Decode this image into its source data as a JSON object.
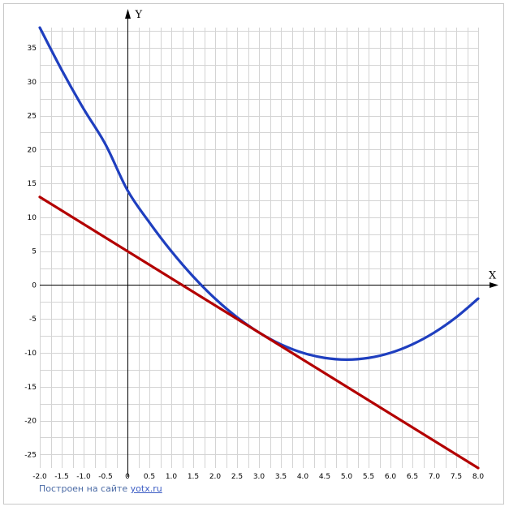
{
  "chart_data": {
    "type": "line",
    "xlabel": "X",
    "ylabel": "Y",
    "xlim": [
      -2.0,
      8.0
    ],
    "ylim": [
      -27,
      38
    ],
    "x_ticks": [
      -2.0,
      -1.5,
      -1.0,
      -0.5,
      0,
      0.5,
      1.0,
      1.5,
      2.0,
      2.5,
      3.0,
      3.5,
      4.0,
      4.5,
      5.0,
      5.5,
      6.0,
      6.5,
      7.0,
      7.5,
      8.0
    ],
    "x_tick_labels": [
      "-2.0",
      "-1.5",
      "-1.0",
      "-0.5",
      "0",
      "0.5",
      "1.0",
      "1.5",
      "2.0",
      "2.5",
      "3.0",
      "3.5",
      "4.0",
      "4.5",
      "5.0",
      "5.5",
      "6.0",
      "6.5",
      "7.0",
      "7.5",
      "8.0"
    ],
    "y_ticks": [
      -25,
      -20,
      -15,
      -10,
      -5,
      0,
      5,
      10,
      15,
      20,
      25,
      30,
      35
    ],
    "y_tick_labels": [
      "-25",
      "-20",
      "-15",
      "-10",
      "-5",
      "0",
      "5",
      "10",
      "15",
      "20",
      "25",
      "30",
      "35"
    ],
    "grid": true,
    "series": [
      {
        "color": "#1f3fbf",
        "x": [
          -2.0,
          -1.5,
          -1.0,
          -0.5,
          0,
          0.5,
          1.0,
          1.5,
          2.0,
          2.5,
          3.0,
          3.5,
          4.0,
          4.5,
          5.0,
          5.5,
          6.0,
          6.5,
          7.0,
          7.5,
          8.0
        ],
        "y": [
          38,
          31.75,
          26,
          20.75,
          14,
          9.25,
          5,
          1.25,
          -2,
          -4.75,
          -7,
          -8.75,
          -10,
          -10.75,
          -11,
          -10.75,
          -10,
          -8.75,
          -7,
          -4.75,
          -2
        ]
      },
      {
        "color": "#b30000",
        "x": [
          -2.0,
          8.0
        ],
        "y": [
          13,
          -27
        ]
      }
    ]
  },
  "footer": {
    "text": "Построен на сайте",
    "link": "yotx.ru"
  }
}
